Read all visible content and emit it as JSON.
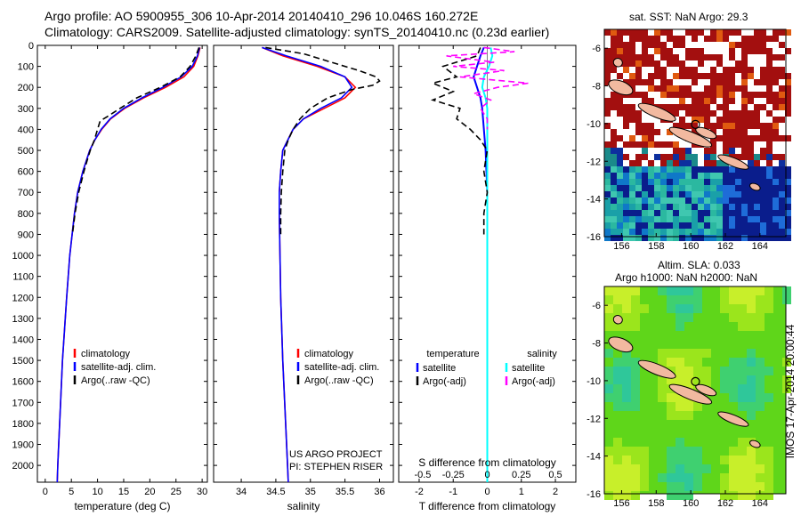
{
  "header": {
    "line1": "Argo profile: AO 5900955_306 10-Apr-2014 20140410_296 10.046S 160.272E",
    "line2": "Climatology: CARS2009. Satellite-adjusted climatology: synTS_20140410.nc (0.23d earlier)"
  },
  "colors": {
    "climatology": "#ff0000",
    "satellite_adj": "#0000ff",
    "argo": "#000000",
    "satellite_diff_t": "#0000ff",
    "satellite_diff_s": "#00ffff",
    "argo_adj_t": "#000000",
    "argo_adj_s": "#ff00ff",
    "land": "#f2b9a0",
    "sst_hot": "#a30f0f",
    "sst_cool": "#0a1d8c"
  },
  "chart_data": [
    {
      "id": "temperature",
      "type": "line",
      "xlabel": "temperature (deg C)",
      "ylabel": "",
      "xlim": [
        -1.5,
        31
      ],
      "ylim": [
        2080,
        0
      ],
      "xticks": [
        0,
        5,
        10,
        15,
        20,
        25,
        30
      ],
      "yticks": [
        0,
        100,
        200,
        300,
        400,
        500,
        600,
        700,
        800,
        900,
        1000,
        1100,
        1200,
        1300,
        1400,
        1500,
        1600,
        1700,
        1800,
        1900,
        2000
      ],
      "legend": [
        "climatology",
        "satellite-adj. clim.",
        "Argo(..raw -QC)"
      ],
      "series": [
        {
          "name": "climatology",
          "y": [
            10,
            50,
            100,
            150,
            200,
            250,
            300,
            350,
            400,
            450,
            500,
            600,
            700,
            800,
            1000,
            1200,
            1500,
            2000,
            2080
          ],
          "x": [
            29.6,
            29.2,
            28.4,
            26.5,
            23.0,
            18.8,
            15.2,
            12.5,
            10.8,
            9.5,
            8.5,
            7.2,
            6.2,
            5.6,
            4.7,
            4.1,
            3.3,
            2.4,
            2.3
          ]
        },
        {
          "name": "satellite-adj. clim.",
          "y": [
            10,
            50,
            100,
            150,
            200,
            250,
            300,
            350,
            400,
            450,
            500,
            600,
            700,
            800,
            1000,
            1200,
            1500,
            2000,
            2080
          ],
          "x": [
            29.5,
            29.1,
            28.1,
            26.0,
            22.5,
            18.5,
            15.0,
            12.4,
            10.7,
            9.5,
            8.5,
            7.2,
            6.2,
            5.6,
            4.7,
            4.1,
            3.3,
            2.4,
            2.3
          ]
        },
        {
          "name": "Argo(..raw -QC)",
          "y": [
            10,
            50,
            100,
            150,
            200,
            250,
            300,
            340,
            360,
            400,
            450,
            500,
            550,
            600,
            700,
            800,
            900
          ],
          "x": [
            29.4,
            28.8,
            27.7,
            25.8,
            22.0,
            17.5,
            14.3,
            11.8,
            10.5,
            10.0,
            9.4,
            8.6,
            8.0,
            7.4,
            6.4,
            5.7,
            5.2
          ]
        }
      ]
    },
    {
      "id": "salinity",
      "type": "line",
      "xlabel": "salinity",
      "ylabel": "",
      "xlim": [
        33.6,
        36.2
      ],
      "ylim": [
        2080,
        0
      ],
      "xticks": [
        34,
        34.5,
        35,
        35.5,
        36
      ],
      "legend": [
        "climatology",
        "satellite-adj. clim.",
        "Argo(..raw -QC)"
      ],
      "annotation": [
        "US ARGO PROJECT",
        "PI: STEPHEN RISER"
      ],
      "series": [
        {
          "name": "climatology",
          "y": [
            10,
            50,
            100,
            150,
            200,
            250,
            300,
            350,
            400,
            500,
            600,
            700,
            800,
            1000,
            1200,
            1500,
            2000,
            2080
          ],
          "x": [
            34.3,
            34.6,
            35.1,
            35.5,
            35.65,
            35.5,
            35.2,
            34.9,
            34.75,
            34.6,
            34.57,
            34.55,
            34.55,
            34.56,
            34.57,
            34.6,
            34.67,
            34.68
          ]
        },
        {
          "name": "satellite-adj. clim.",
          "y": [
            10,
            50,
            100,
            150,
            200,
            250,
            300,
            350,
            400,
            500,
            600,
            700,
            800,
            1000,
            1200,
            1500,
            2000,
            2080
          ],
          "x": [
            34.3,
            34.65,
            35.15,
            35.5,
            35.6,
            35.45,
            35.15,
            34.9,
            34.75,
            34.6,
            34.57,
            34.55,
            34.55,
            34.56,
            34.57,
            34.6,
            34.67,
            34.68
          ]
        },
        {
          "name": "Argo(..raw -QC)",
          "y": [
            10,
            40,
            80,
            120,
            150,
            170,
            190,
            210,
            250,
            300,
            350,
            400,
            450,
            500,
            600,
            700,
            800,
            900
          ],
          "x": [
            34.35,
            34.9,
            35.3,
            35.7,
            35.95,
            36.0,
            35.9,
            35.6,
            35.25,
            35.0,
            34.85,
            34.75,
            34.68,
            34.63,
            34.6,
            34.58,
            34.57,
            34.57
          ]
        }
      ]
    },
    {
      "id": "difference",
      "type": "line",
      "xlabel": "T difference from climatology",
      "top_xlabel": "S difference from climatology",
      "xlim": [
        -2.6,
        2.6
      ],
      "ylim": [
        2080,
        0
      ],
      "xticks": [
        -2,
        -1,
        0,
        1,
        2
      ],
      "top_xticks": [
        -0.5,
        -0.25,
        0,
        0.25,
        0.5
      ],
      "legend_groups": [
        "temperature",
        "salinity"
      ],
      "legend": [
        "satellite",
        "Argo(-adj)",
        "satellite",
        "Argo(-adj)"
      ],
      "series": [
        {
          "name": "satellite",
          "group": "temperature",
          "y": [
            10,
            50,
            100,
            150,
            200,
            250,
            300,
            400,
            500,
            700,
            1000,
            1500,
            2000,
            2080
          ],
          "x": [
            -0.1,
            -0.2,
            -0.3,
            -0.4,
            -0.3,
            -0.2,
            -0.15,
            -0.1,
            -0.05,
            0,
            0,
            0,
            0,
            0
          ]
        },
        {
          "name": "satellite",
          "group": "salinity",
          "y": [
            10,
            50,
            100,
            150,
            200,
            250,
            300,
            400,
            500,
            700,
            1000,
            1500,
            2000,
            2080
          ],
          "x": [
            0.1,
            0.15,
            0.05,
            -0.1,
            -0.15,
            -0.05,
            0,
            0,
            0,
            0,
            0,
            0,
            0,
            0
          ]
        },
        {
          "name": "Argo(-adj)",
          "group": "temperature",
          "y": [
            10,
            50,
            100,
            150,
            180,
            220,
            260,
            300,
            350,
            400,
            450,
            500,
            600,
            700,
            800,
            900
          ],
          "x": [
            -0.2,
            -0.3,
            -1.3,
            -0.9,
            -1.6,
            -1.0,
            -1.6,
            -0.8,
            -0.9,
            -0.5,
            -0.2,
            0,
            -0.1,
            0,
            -0.1,
            -0.1
          ]
        },
        {
          "name": "Argo(-adj)",
          "group": "salinity",
          "y": [
            10,
            30,
            50,
            80,
            100,
            120,
            150,
            180,
            200,
            230,
            260,
            300,
            350,
            400
          ],
          "x": [
            -0.1,
            0.8,
            -1.2,
            0.2,
            -1.0,
            0.5,
            -0.8,
            1.2,
            0.3,
            -0.4,
            0.1,
            -0.2,
            0,
            0
          ]
        }
      ]
    }
  ],
  "maps": {
    "sst": {
      "title": "sat. SST: NaN Argo: 29.3",
      "xticks": [
        156,
        158,
        160,
        162,
        164
      ],
      "yticks": [
        -6,
        -8,
        -10,
        -12,
        -14,
        -16
      ]
    },
    "sla": {
      "title_line1": "Altim. SLA: 0.033",
      "title_line2": "Argo h1000: NaN h2000: NaN",
      "xticks": [
        156,
        158,
        160,
        162,
        164
      ],
      "yticks": [
        -6,
        -8,
        -10,
        -12,
        -14,
        -16
      ]
    },
    "side_label": "IMOS 17-Apr-2014 20:00:44"
  }
}
